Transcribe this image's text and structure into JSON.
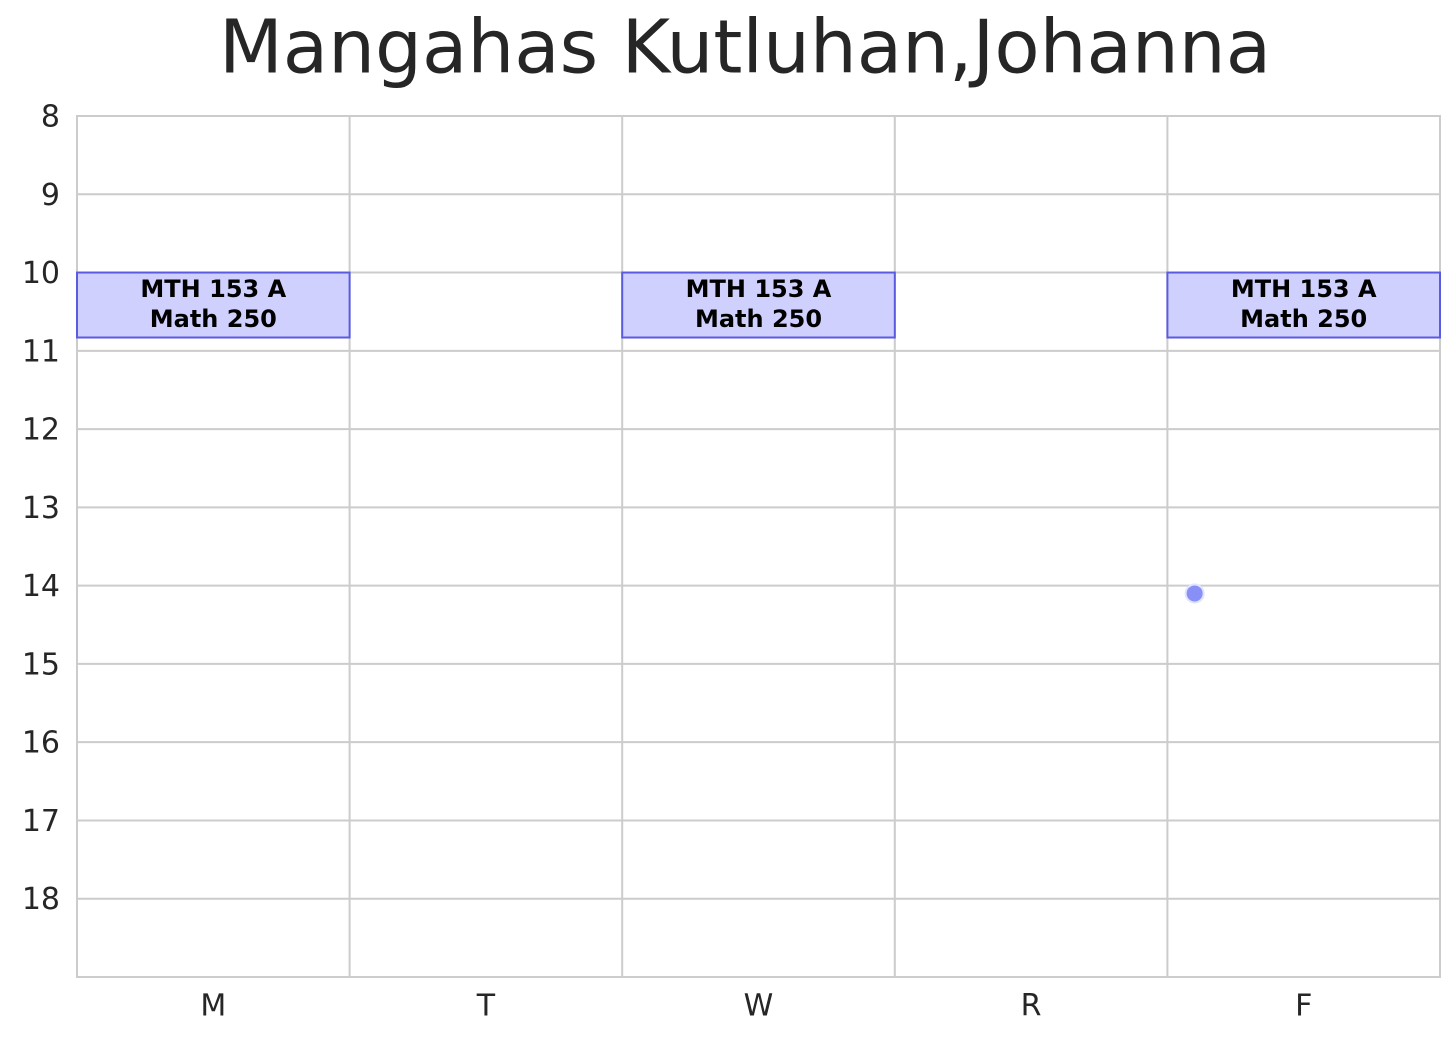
{
  "chart_data": {
    "type": "schedule",
    "title": "Mangahas Kutluhan,Johanna",
    "categories": [
      "M",
      "T",
      "W",
      "R",
      "F"
    ],
    "ylim": [
      19,
      8
    ],
    "yticks": [
      8,
      9,
      10,
      11,
      12,
      13,
      14,
      15,
      16,
      17,
      18
    ],
    "xlim": [
      0,
      5
    ],
    "grid": true,
    "events": [
      {
        "day": "M",
        "start": 10,
        "end": 10.83,
        "course": "MTH 153 A",
        "room": "Math 250",
        "color": "#d0d0ff",
        "edgecolor": "#5b5be0"
      },
      {
        "day": "W",
        "start": 10,
        "end": 10.83,
        "course": "MTH 153 A",
        "room": "Math 250",
        "color": "#d0d0ff",
        "edgecolor": "#5b5be0"
      },
      {
        "day": "F",
        "start": 10,
        "end": 10.83,
        "course": "MTH 153 A",
        "room": "Math 250",
        "color": "#d0d0ff",
        "edgecolor": "#5b5be0"
      }
    ],
    "points": [
      {
        "x": 4.1,
        "y": 14.1,
        "color": "#8890f5"
      }
    ]
  }
}
